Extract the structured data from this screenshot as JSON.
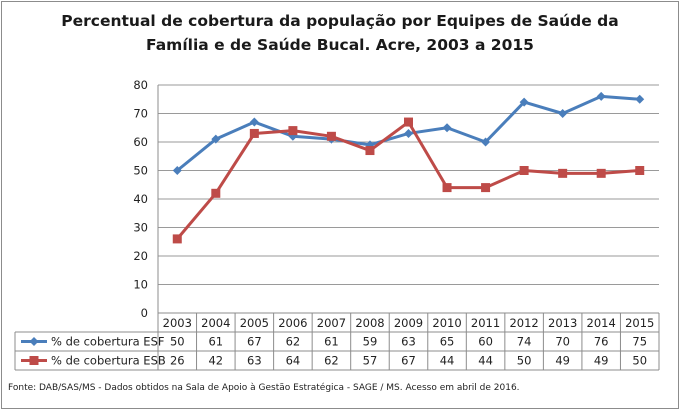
{
  "chart_data": {
    "type": "line",
    "title_line1": "Percentual de cobertura da população por Equipes de Saúde da",
    "title_line2": "Família e de Saúde Bucal. Acre, 2003 a 2015",
    "categories": [
      "2003",
      "2004",
      "2005",
      "2006",
      "2007",
      "2008",
      "2009",
      "2010",
      "2011",
      "2012",
      "2013",
      "2014",
      "2015"
    ],
    "ylim": [
      0,
      80
    ],
    "yticks": [
      0,
      10,
      20,
      30,
      40,
      50,
      60,
      70,
      80
    ],
    "grid": true,
    "legend": "data-table-left",
    "series": [
      {
        "name": "% de cobertura ESF",
        "color": "#4a7ebb",
        "marker": "diamond",
        "values": [
          50,
          61,
          67,
          62,
          61,
          59,
          63,
          65,
          60,
          74,
          70,
          76,
          75
        ]
      },
      {
        "name": "% de cobertura ESB",
        "color": "#be4b48",
        "marker": "square",
        "values": [
          26,
          42,
          63,
          64,
          62,
          57,
          67,
          44,
          44,
          50,
          49,
          49,
          50
        ]
      }
    ]
  },
  "source": "Fonte:  DAB/SAS/MS - Dados obtidos na Sala de Apoio à Gestão Estratégica - SAGE / MS. Acesso em abril  de 2016."
}
